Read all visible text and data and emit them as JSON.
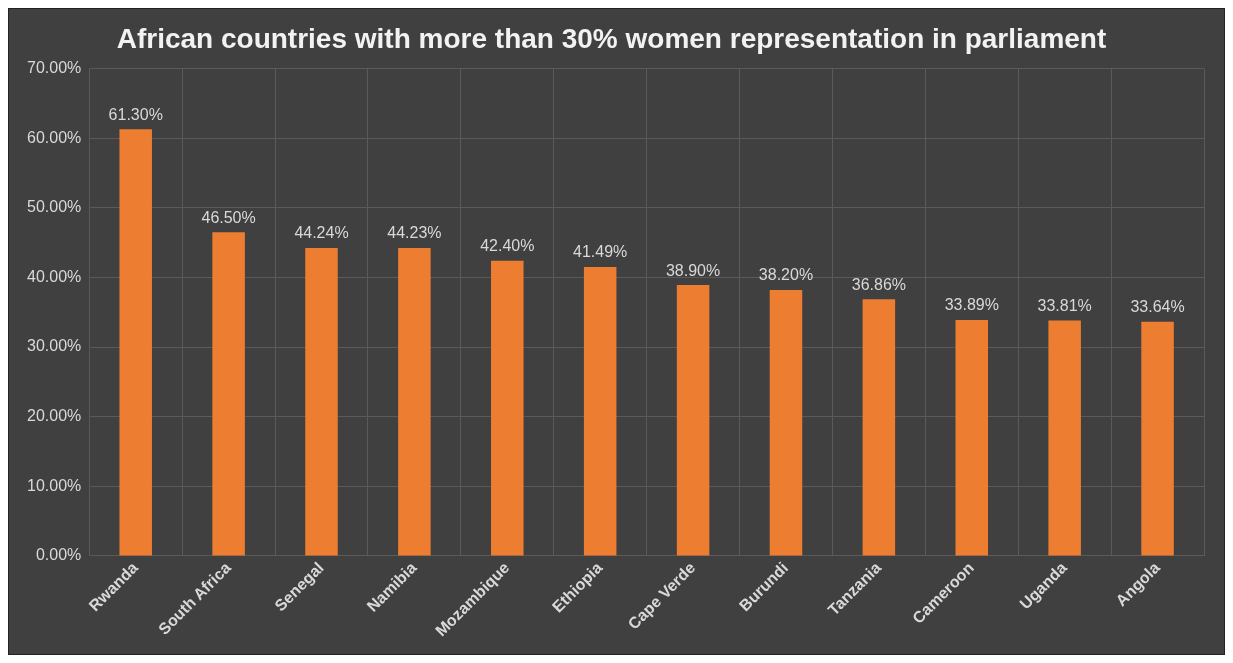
{
  "chart_data": {
    "type": "bar",
    "title": "African countries with more than 30% women representation in parliament",
    "categories": [
      "Rwanda",
      "South Africa",
      "Senegal",
      "Namibia",
      "Mozambique",
      "Ethiopia",
      "Cape Verde",
      "Burundi",
      "Tanzania",
      "Cameroon",
      "Uganda",
      "Angola"
    ],
    "values": [
      61.3,
      46.5,
      44.24,
      44.23,
      42.4,
      41.49,
      38.9,
      38.2,
      36.86,
      33.89,
      33.81,
      33.64
    ],
    "value_labels": [
      "61.30%",
      "46.50%",
      "44.24%",
      "44.23%",
      "42.40%",
      "41.49%",
      "38.90%",
      "38.20%",
      "36.86%",
      "33.89%",
      "33.81%",
      "33.64%"
    ],
    "color": "#ed7d31",
    "ylim": [
      0,
      70
    ],
    "yticks": [
      {
        "value": 0,
        "label": "0.00%"
      },
      {
        "value": 10,
        "label": "10.00%"
      },
      {
        "value": 20,
        "label": "20.00%"
      },
      {
        "value": 30,
        "label": "30.00%"
      },
      {
        "value": 40,
        "label": "40.00%"
      },
      {
        "value": 50,
        "label": "50.00%"
      },
      {
        "value": 60,
        "label": "60.00%"
      },
      {
        "value": 70,
        "label": "70.00%"
      }
    ],
    "grid": true,
    "legend": false
  }
}
